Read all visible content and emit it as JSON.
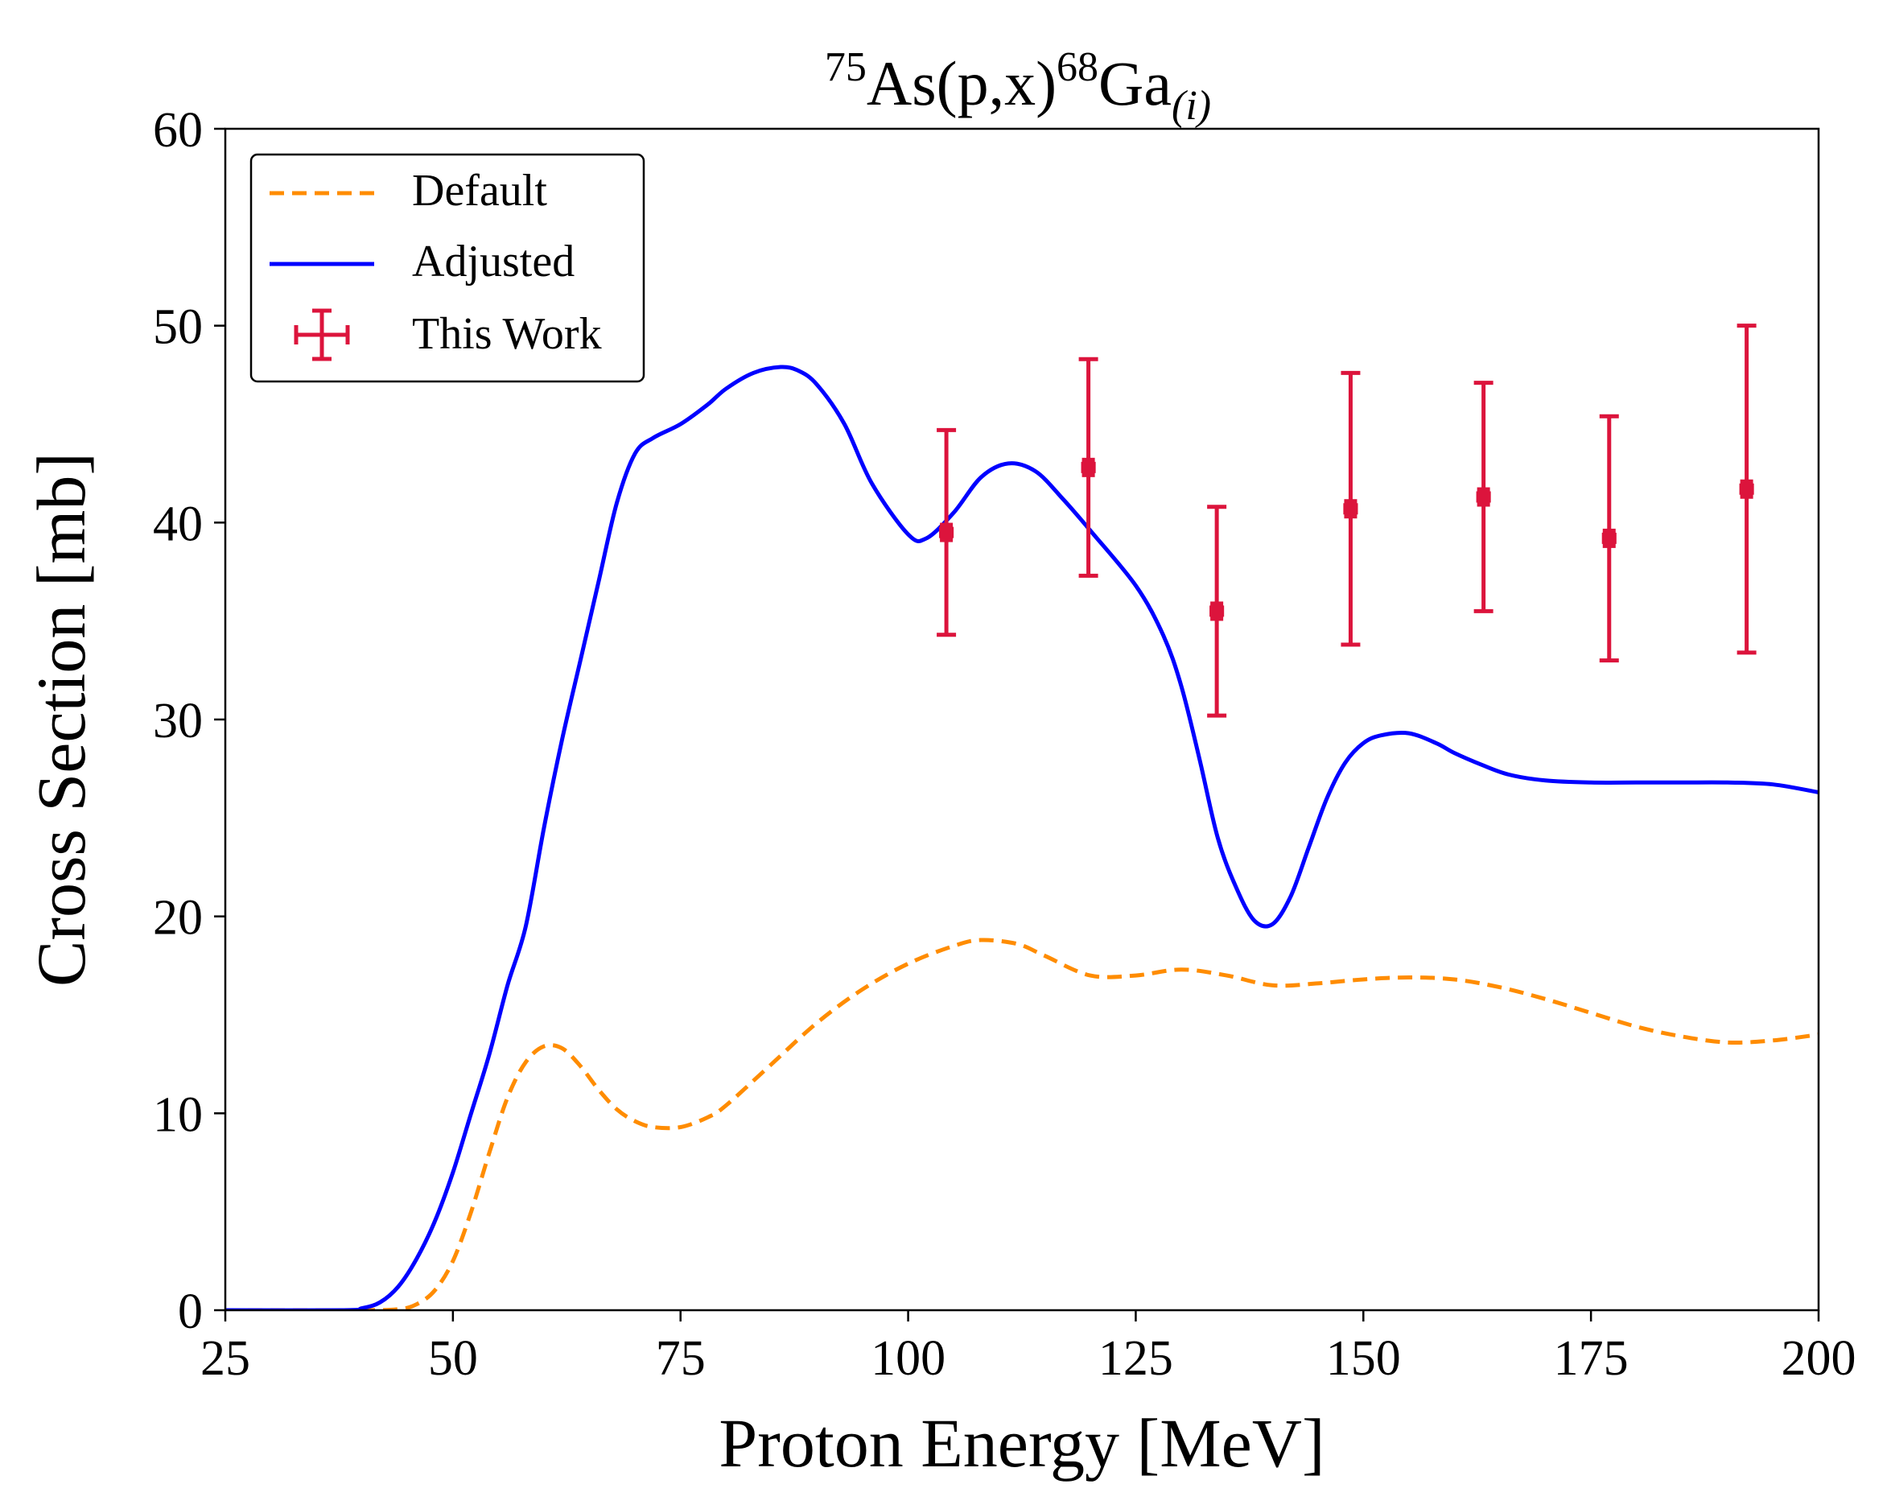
{
  "chart_data": {
    "type": "line",
    "title": {
      "mass_target": "75",
      "reaction": "As(p,x)",
      "mass_product": "68",
      "element": "Ga",
      "subscript": "(i)"
    },
    "xlabel": "Proton Energy [MeV]",
    "ylabel": "Cross Section [mb]",
    "xlim": [
      25,
      200
    ],
    "ylim": [
      0,
      60
    ],
    "xticks": [
      25,
      50,
      75,
      100,
      125,
      150,
      175,
      200
    ],
    "yticks": [
      0,
      10,
      20,
      30,
      40,
      50,
      60
    ],
    "xtick_labels": [
      "25",
      "50",
      "75",
      "100",
      "125",
      "150",
      "175",
      "200"
    ],
    "ytick_labels": [
      "0",
      "10",
      "20",
      "30",
      "40",
      "50",
      "60"
    ],
    "grid": false,
    "legend_position": "top-left",
    "colors": {
      "default": "#ff8c00",
      "adjusted": "#0000ff",
      "this_work": "#dc143c"
    },
    "series": [
      {
        "name": "Default",
        "style": "dashed",
        "x": [
          25,
          40,
          44,
          46,
          48,
          50,
          52,
          54,
          56,
          58,
          60,
          62,
          64,
          66,
          68,
          70,
          72,
          75,
          78,
          80,
          85,
          90,
          95,
          100,
          105,
          108,
          112,
          115,
          120,
          125,
          130,
          135,
          140,
          145,
          150,
          155,
          160,
          165,
          170,
          175,
          180,
          185,
          190,
          195,
          200
        ],
        "y": [
          0,
          0,
          0.05,
          0.3,
          1.0,
          2.5,
          5.0,
          8.0,
          10.8,
          12.6,
          13.4,
          13.3,
          12.4,
          11.2,
          10.2,
          9.6,
          9.3,
          9.3,
          9.8,
          10.4,
          12.5,
          14.6,
          16.3,
          17.6,
          18.5,
          18.8,
          18.6,
          18.0,
          17.0,
          17.0,
          17.3,
          17.0,
          16.5,
          16.6,
          16.8,
          16.9,
          16.8,
          16.4,
          15.8,
          15.1,
          14.4,
          13.9,
          13.6,
          13.7,
          14.0
        ]
      },
      {
        "name": "Adjusted",
        "style": "solid",
        "x": [
          25,
          38,
          40,
          42,
          44,
          46,
          48,
          50,
          52,
          54,
          56,
          58,
          60,
          62,
          64,
          66,
          68,
          70,
          72,
          75,
          78,
          80,
          83,
          86,
          88,
          90,
          93,
          96,
          100,
          102,
          105,
          108,
          111,
          114,
          117,
          120,
          125,
          128,
          130,
          132,
          134,
          136,
          138,
          140,
          142,
          144,
          146,
          148,
          150,
          152,
          155,
          158,
          160,
          163,
          166,
          170,
          175,
          180,
          185,
          190,
          195,
          200
        ],
        "y": [
          0,
          0,
          0.1,
          0.4,
          1.2,
          2.6,
          4.5,
          7.0,
          10.0,
          13.0,
          16.5,
          19.5,
          24.5,
          29.0,
          33.0,
          37.0,
          41.0,
          43.5,
          44.3,
          45.0,
          46.0,
          46.8,
          47.6,
          47.9,
          47.7,
          47.0,
          45.0,
          42.0,
          39.4,
          39.2,
          40.5,
          42.3,
          43.0,
          42.6,
          41.2,
          39.6,
          36.8,
          34.3,
          31.7,
          28.0,
          24.0,
          21.5,
          19.8,
          19.6,
          21.0,
          23.5,
          26.0,
          27.8,
          28.8,
          29.2,
          29.3,
          28.8,
          28.3,
          27.7,
          27.2,
          26.9,
          26.8,
          26.8,
          26.8,
          26.8,
          26.7,
          26.3
        ]
      }
    ],
    "errorbar_series": {
      "name": "This Work",
      "points": [
        {
          "x": 104.2,
          "y": 39.5,
          "xerr": 0.8,
          "yerr_low": 5.2,
          "yerr_high": 5.2
        },
        {
          "x": 119.8,
          "y": 42.8,
          "xerr": 0.8,
          "yerr_low": 5.5,
          "yerr_high": 5.5
        },
        {
          "x": 133.9,
          "y": 35.5,
          "xerr": 0.8,
          "yerr_low": 5.3,
          "yerr_high": 5.3
        },
        {
          "x": 148.6,
          "y": 40.7,
          "xerr": 0.8,
          "yerr_low": 6.9,
          "yerr_high": 6.9
        },
        {
          "x": 163.2,
          "y": 41.3,
          "xerr": 0.8,
          "yerr_low": 5.8,
          "yerr_high": 5.8
        },
        {
          "x": 177.0,
          "y": 39.2,
          "xerr": 0.8,
          "yerr_low": 6.2,
          "yerr_high": 6.2
        },
        {
          "x": 192.1,
          "y": 41.7,
          "xerr": 0.8,
          "yerr_low": 8.3,
          "yerr_high": 8.3
        }
      ]
    },
    "legend": [
      "Default",
      "Adjusted",
      "This Work"
    ]
  }
}
